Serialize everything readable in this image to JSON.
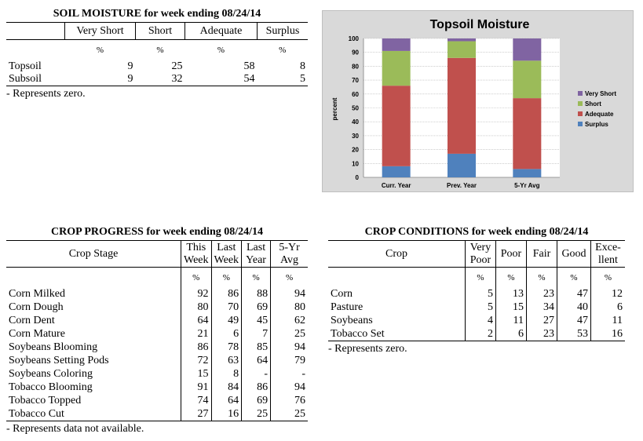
{
  "soil": {
    "title": "SOIL MOISTURE for week ending 08/24/14",
    "headers": [
      "Very Short",
      "Short",
      "Adequate",
      "Surplus"
    ],
    "pct": "%",
    "rows": [
      {
        "label": "Topsoil",
        "values": [
          "9",
          "25",
          "58",
          "8"
        ]
      },
      {
        "label": "Subsoil",
        "values": [
          "9",
          "32",
          "54",
          "5"
        ]
      }
    ],
    "note": "- Represents zero."
  },
  "chart_data": {
    "type": "bar",
    "stacked": true,
    "title": "Topsoil Moisture",
    "ylabel": "percent",
    "xlabel": "",
    "categories": [
      "Curr. Year",
      "Prev. Year",
      "5-Yr Avg"
    ],
    "ylim": [
      0,
      100
    ],
    "yticks": [
      0,
      10,
      20,
      30,
      40,
      50,
      60,
      70,
      80,
      90,
      100
    ],
    "grid": true,
    "legend_position": "right",
    "series": [
      {
        "name": "Surplus",
        "color": "#4f81bd",
        "values": [
          8,
          17,
          6
        ]
      },
      {
        "name": "Adequate",
        "color": "#c0504d",
        "values": [
          58,
          69,
          51
        ]
      },
      {
        "name": "Short",
        "color": "#9bbb59",
        "values": [
          25,
          12,
          27
        ]
      },
      {
        "name": "Very Short",
        "color": "#8064a2",
        "values": [
          9,
          2,
          16
        ]
      }
    ]
  },
  "progress": {
    "title": "CROP PROGRESS for week ending 08/24/14",
    "stage_header": "Crop Stage",
    "headers": [
      [
        "This",
        "Week"
      ],
      [
        "Last",
        "Week"
      ],
      [
        "Last",
        "Year"
      ],
      [
        "5-Yr",
        "Avg"
      ]
    ],
    "pct": "%",
    "rows": [
      {
        "label": "Corn Milked",
        "values": [
          "92",
          "86",
          "88",
          "94"
        ]
      },
      {
        "label": "Corn Dough",
        "values": [
          "80",
          "70",
          "69",
          "80"
        ]
      },
      {
        "label": "Corn Dent",
        "values": [
          "64",
          "49",
          "45",
          "62"
        ]
      },
      {
        "label": "Corn Mature",
        "values": [
          "21",
          "6",
          "7",
          "25"
        ]
      },
      {
        "label": "Soybeans Blooming",
        "values": [
          "86",
          "78",
          "85",
          "94"
        ]
      },
      {
        "label": "Soybeans Setting Pods",
        "values": [
          "72",
          "63",
          "64",
          "79"
        ]
      },
      {
        "label": "Soybeans Coloring",
        "values": [
          "15",
          "8",
          "-",
          "-"
        ]
      },
      {
        "label": "Tobacco Blooming",
        "values": [
          "91",
          "84",
          "86",
          "94"
        ]
      },
      {
        "label": "Tobacco Topped",
        "values": [
          "74",
          "64",
          "69",
          "76"
        ]
      },
      {
        "label": "Tobacco Cut",
        "values": [
          "27",
          "16",
          "25",
          "25"
        ]
      }
    ],
    "note": "- Represents data not available."
  },
  "conditions": {
    "title": "CROP CONDITIONS for week ending 08/24/14",
    "crop_header": "Crop",
    "headers": [
      [
        "Very",
        "Poor"
      ],
      [
        "Poor"
      ],
      [
        "Fair"
      ],
      [
        "Good"
      ],
      [
        "Exce-",
        "llent"
      ]
    ],
    "pct": "%",
    "rows": [
      {
        "label": "Corn",
        "values": [
          "5",
          "13",
          "23",
          "47",
          "12"
        ]
      },
      {
        "label": "Pasture",
        "values": [
          "5",
          "15",
          "34",
          "40",
          "6"
        ]
      },
      {
        "label": "Soybeans",
        "values": [
          "4",
          "11",
          "27",
          "47",
          "11"
        ]
      },
      {
        "label": "Tobacco Set",
        "values": [
          "2",
          "6",
          "23",
          "53",
          "16"
        ]
      }
    ],
    "note": "- Represents zero."
  }
}
